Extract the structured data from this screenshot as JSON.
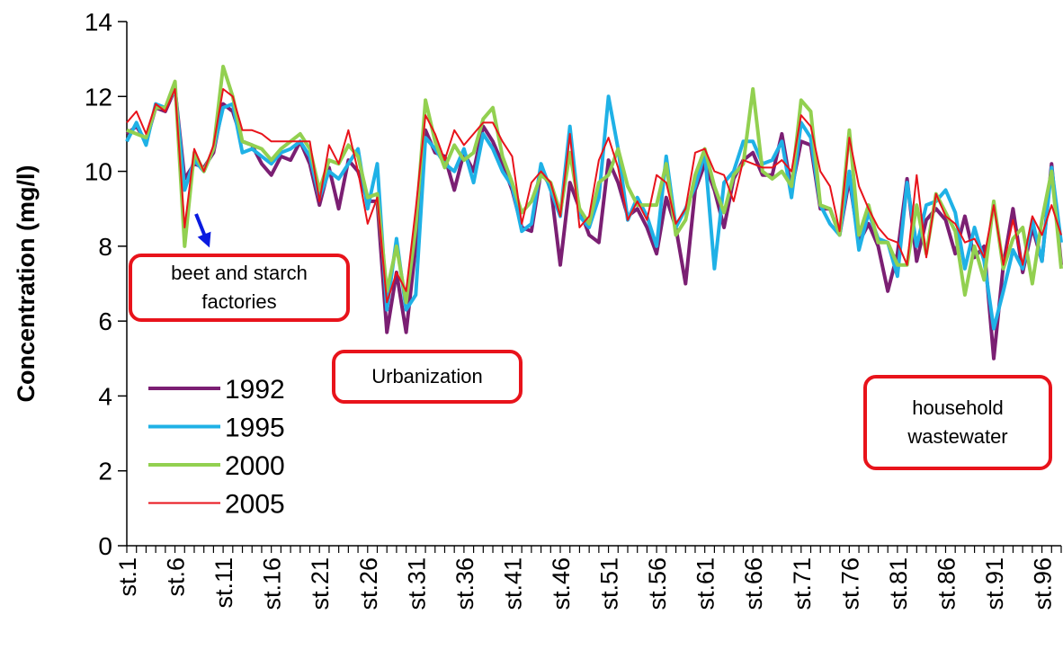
{
  "chart_data": {
    "type": "line",
    "y_label": "Concentration (mg/l)",
    "categories": [
      "st.1",
      null,
      null,
      null,
      null,
      "st.6",
      null,
      null,
      null,
      null,
      "st.11",
      null,
      null,
      null,
      null,
      "st.16",
      null,
      null,
      null,
      null,
      "st.21",
      null,
      null,
      null,
      null,
      "st.26",
      null,
      null,
      null,
      null,
      "st.31",
      null,
      null,
      null,
      null,
      "st.36",
      null,
      null,
      null,
      null,
      "st.41",
      null,
      null,
      null,
      null,
      "st.46",
      null,
      null,
      null,
      null,
      "st.51",
      null,
      null,
      null,
      null,
      "st.56",
      null,
      null,
      null,
      null,
      "st.61",
      null,
      null,
      null,
      null,
      "st.66",
      null,
      null,
      null,
      null,
      "st.71",
      null,
      null,
      null,
      null,
      "st.76",
      null,
      null,
      null,
      null,
      "st.81",
      null,
      null,
      null,
      null,
      "st.86",
      null,
      null,
      null,
      null,
      "st.91",
      null,
      null,
      null,
      null,
      "st.96",
      null,
      null
    ],
    "series": [
      {
        "name": "1992",
        "color": "#7b1f73",
        "width": 4,
        "values": [
          11.0,
          11.2,
          10.8,
          11.7,
          11.6,
          12.2,
          9.8,
          10.2,
          10.1,
          10.5,
          11.8,
          11.6,
          10.8,
          10.7,
          10.2,
          9.9,
          10.4,
          10.3,
          10.8,
          10.2,
          9.1,
          10.1,
          9.0,
          10.3,
          10.0,
          9.2,
          9.2,
          5.7,
          7.3,
          5.7,
          8.0,
          11.1,
          10.5,
          10.4,
          9.5,
          10.5,
          10.0,
          11.2,
          10.8,
          10.2,
          9.5,
          8.5,
          8.4,
          10.0,
          9.6,
          7.5,
          9.7,
          9.0,
          8.3,
          8.1,
          10.3,
          9.7,
          8.8,
          9.0,
          8.5,
          7.8,
          9.3,
          8.5,
          7.0,
          9.5,
          10.2,
          9.5,
          8.5,
          9.8,
          10.3,
          10.5,
          9.9,
          9.9,
          11.0,
          9.5,
          10.8,
          10.7,
          9.0,
          9.0,
          8.3,
          9.8,
          8.1,
          8.6,
          8.0,
          6.8,
          7.8,
          9.8,
          7.6,
          8.7,
          9.0,
          8.7,
          7.8,
          8.8,
          7.7,
          8.0,
          5.0,
          7.5,
          9.0,
          7.3,
          8.5,
          7.6,
          10.2,
          7.5
        ]
      },
      {
        "name": "1995",
        "color": "#1fb1e6",
        "width": 4,
        "values": [
          10.8,
          11.3,
          10.7,
          11.8,
          11.7,
          12.2,
          9.5,
          10.3,
          10.0,
          10.6,
          11.7,
          11.8,
          10.5,
          10.6,
          10.4,
          10.2,
          10.5,
          10.6,
          10.8,
          10.4,
          9.3,
          10.0,
          9.8,
          10.2,
          10.6,
          9.0,
          10.2,
          6.3,
          8.2,
          6.3,
          6.7,
          10.9,
          10.6,
          10.2,
          10.0,
          10.6,
          9.7,
          11.0,
          10.6,
          10.0,
          9.6,
          8.4,
          8.6,
          10.2,
          9.5,
          8.8,
          11.2,
          8.8,
          8.5,
          9.3,
          12.0,
          10.6,
          8.7,
          9.3,
          8.8,
          8.0,
          10.4,
          8.5,
          9.0,
          9.6,
          10.5,
          7.4,
          9.7,
          10.0,
          10.8,
          10.8,
          10.2,
          10.3,
          10.8,
          9.3,
          11.3,
          10.9,
          9.1,
          8.6,
          8.3,
          10.0,
          7.9,
          8.9,
          8.2,
          8.1,
          7.2,
          9.7,
          8.0,
          9.1,
          9.2,
          9.5,
          8.9,
          7.4,
          8.5,
          7.6,
          5.8,
          6.8,
          7.9,
          7.4,
          8.7,
          7.6,
          10.1,
          8.1
        ]
      },
      {
        "name": "2000",
        "color": "#92d050",
        "width": 4,
        "values": [
          11.1,
          11.0,
          10.9,
          11.7,
          11.7,
          12.4,
          8.0,
          10.5,
          10.0,
          10.6,
          12.8,
          12.0,
          10.8,
          10.7,
          10.6,
          10.3,
          10.6,
          10.8,
          11.0,
          10.6,
          9.5,
          10.3,
          10.2,
          10.7,
          10.4,
          9.3,
          9.4,
          6.8,
          8.0,
          6.5,
          8.5,
          11.9,
          10.8,
          10.1,
          10.7,
          10.3,
          10.5,
          11.4,
          11.7,
          10.4,
          9.7,
          8.9,
          9.2,
          9.9,
          9.7,
          8.9,
          10.5,
          9.0,
          8.6,
          9.7,
          9.9,
          10.6,
          9.6,
          9.1,
          9.1,
          9.1,
          10.2,
          8.3,
          8.7,
          9.9,
          10.6,
          9.6,
          8.9,
          9.9,
          10.2,
          12.2,
          10.0,
          9.8,
          10.0,
          9.6,
          11.9,
          11.6,
          9.1,
          9.0,
          8.3,
          11.1,
          8.3,
          9.1,
          8.1,
          8.1,
          7.5,
          7.5,
          9.1,
          7.8,
          9.4,
          8.9,
          8.4,
          6.7,
          8.0,
          7.1,
          9.2,
          7.4,
          8.2,
          8.5,
          7.0,
          8.7,
          10.0,
          7.4
        ]
      },
      {
        "name": "2005",
        "color": "#e8131b",
        "width": 2,
        "values": [
          11.3,
          11.6,
          11.0,
          11.8,
          11.6,
          12.2,
          8.5,
          10.6,
          10.0,
          10.7,
          12.2,
          12.0,
          11.1,
          11.1,
          11.0,
          10.8,
          10.8,
          10.8,
          10.8,
          10.8,
          9.2,
          10.7,
          10.2,
          11.1,
          10.0,
          8.6,
          9.3,
          6.5,
          7.3,
          6.8,
          9.0,
          11.5,
          11.0,
          10.3,
          11.1,
          10.7,
          11.0,
          11.3,
          11.3,
          10.8,
          10.4,
          8.6,
          9.7,
          10.0,
          9.7,
          8.8,
          11.0,
          8.5,
          8.8,
          10.3,
          10.9,
          10.1,
          8.7,
          9.2,
          8.7,
          9.9,
          9.7,
          8.6,
          9.0,
          10.5,
          10.6,
          10.0,
          9.9,
          9.2,
          10.3,
          10.2,
          10.1,
          10.1,
          10.3,
          10.0,
          11.5,
          11.2,
          10.0,
          9.6,
          8.4,
          10.9,
          9.6,
          9.0,
          8.5,
          8.2,
          8.1,
          7.5,
          9.9,
          7.7,
          9.4,
          8.8,
          8.6,
          8.1,
          8.2,
          7.7,
          9.1,
          7.5,
          8.7,
          7.5,
          8.8,
          8.3,
          9.1,
          8.3
        ]
      }
    ],
    "ylim": [
      0,
      14
    ],
    "yticks": [
      0,
      2,
      4,
      6,
      8,
      10,
      12,
      14
    ],
    "legend": "left",
    "annotations": [
      "beet and starch factories",
      "Urbanization",
      "household wastewater"
    ],
    "arrow_color": "#0a1be0"
  }
}
